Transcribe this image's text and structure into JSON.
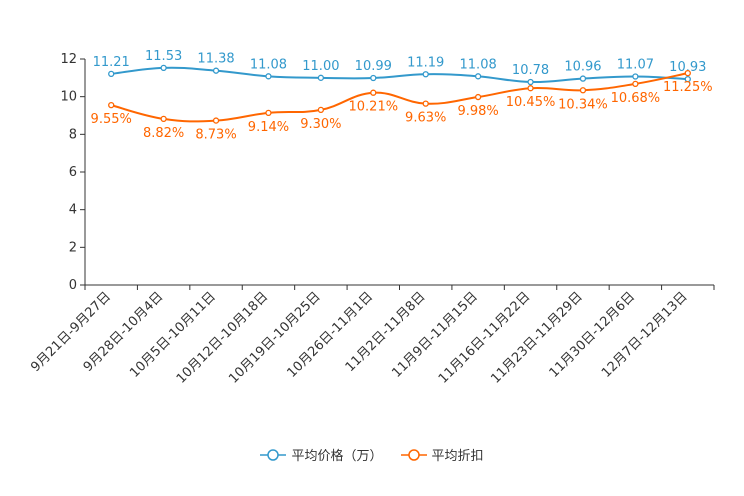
{
  "chart_data": {
    "type": "line",
    "title": "",
    "xlabel": "",
    "ylabel": "",
    "ylim": [
      0,
      12
    ],
    "yticks": [
      0,
      2,
      4,
      6,
      8,
      10,
      12
    ],
    "grid": false,
    "legend_position": "bottom",
    "categories": [
      "9月21日-9月27日",
      "9月28日-10月4日",
      "10月5日-10月11日",
      "10月12日-10月18日",
      "10月19日-10月25日",
      "10月26日-11月1日",
      "11月2日-11月8日",
      "11月9日-11月15日",
      "11月16日-11月22日",
      "11月23日-11月29日",
      "11月30日-12月6日",
      "12月7日-12月13日"
    ],
    "series": [
      {
        "name": "平均价格（万）",
        "color": "#3399cc",
        "values": [
          11.21,
          11.53,
          11.38,
          11.08,
          11.0,
          10.99,
          11.19,
          11.08,
          10.78,
          10.96,
          11.07,
          10.93
        ],
        "labels": [
          "11.21",
          "11.53",
          "11.38",
          "11.08",
          "11.00",
          "10.99",
          "11.19",
          "11.08",
          "10.78",
          "10.96",
          "11.07",
          "10.93"
        ]
      },
      {
        "name": "平均折扣",
        "color": "#ff6600",
        "values": [
          9.55,
          8.82,
          8.73,
          9.14,
          9.3,
          10.21,
          9.63,
          9.98,
          10.45,
          10.34,
          10.68,
          11.25
        ],
        "labels": [
          "9.55%",
          "8.82%",
          "8.73%",
          "9.14%",
          "9.30%",
          "10.21%",
          "9.63%",
          "9.98%",
          "10.45%",
          "10.34%",
          "10.68%",
          "11.25%"
        ]
      }
    ]
  }
}
